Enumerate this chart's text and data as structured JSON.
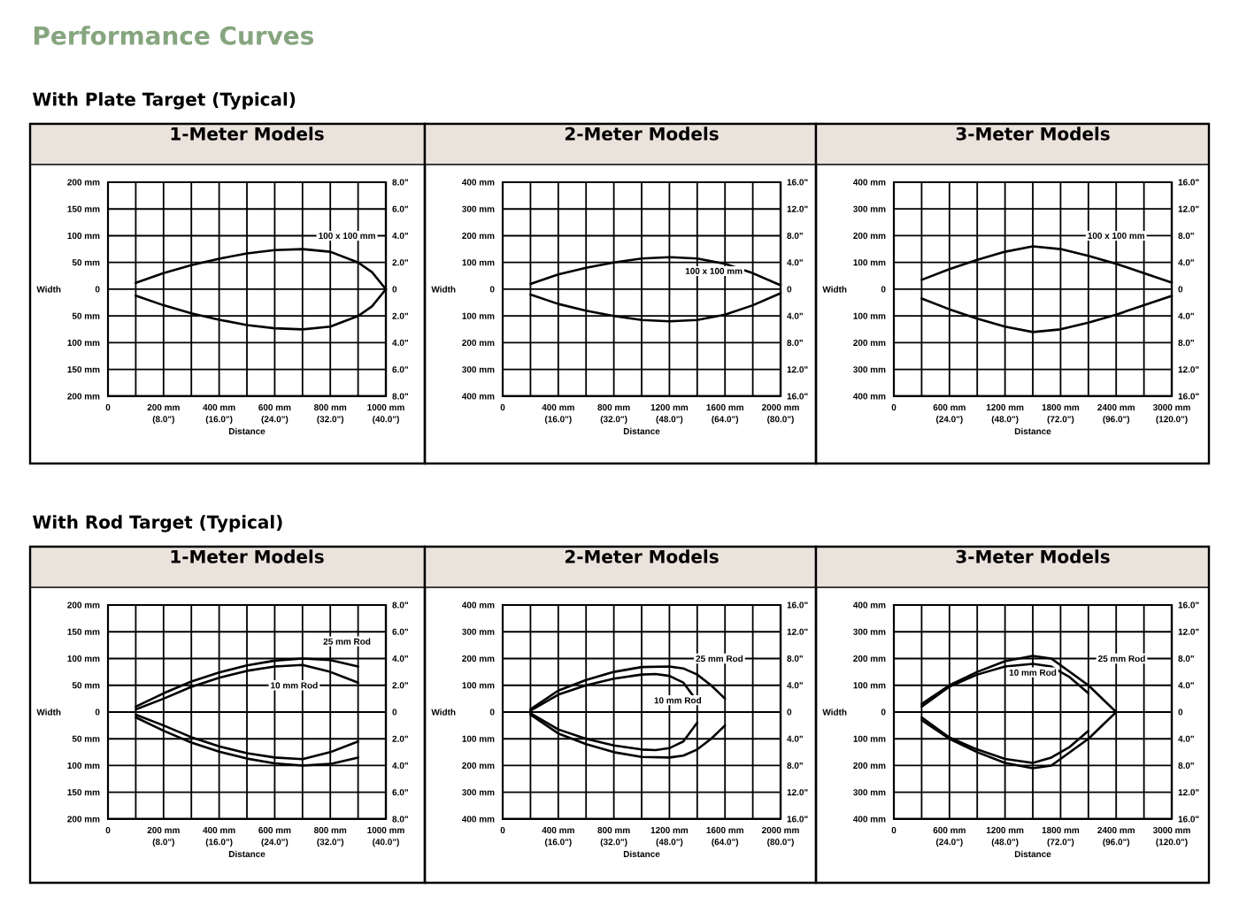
{
  "chart_data": [
    {
      "type": "line",
      "title": "1-Meter Models",
      "xlabel": "Distance",
      "ylabel": "Width",
      "annotations": [
        "Performance Curves",
        "With Plate Target (Typical)"
      ],
      "grid": true,
      "xlim": [
        0,
        1000
      ],
      "ylim": [
        -200,
        200
      ],
      "y2lim": [
        -8,
        8
      ],
      "x2lim": [
        0,
        40
      ],
      "xticks": [
        0,
        {
          "value": 100,
          "label": null
        },
        {
          "value": 200,
          "label": "200 mm"
        },
        {
          "value": 300,
          "label": null
        },
        {
          "value": 400,
          "label": "400 mm"
        },
        {
          "value": 500,
          "label": null
        },
        {
          "value": 600,
          "label": "600 mm"
        },
        {
          "value": 700,
          "label": null
        },
        {
          "value": 800,
          "label": "800 mm"
        },
        {
          "value": 900,
          "label": null
        },
        {
          "value": 1000,
          "label": "1000 mm"
        }
      ],
      "x2ticks": [
        {
          "value": 8,
          "label": "(8.0\")"
        },
        {
          "value": 16,
          "label": "(16.0\")"
        },
        {
          "value": 24,
          "label": "(24.0\")"
        },
        {
          "value": 32,
          "label": "(32.0\")"
        },
        {
          "value": 40,
          "label": "(40.0\")"
        }
      ],
      "yticks": [
        {
          "value": -200,
          "label": "200 mm"
        },
        {
          "value": -150,
          "label": "150 mm"
        },
        {
          "value": -100,
          "label": "100 mm"
        },
        {
          "value": -50,
          "label": "50 mm"
        },
        0,
        {
          "value": 50,
          "label": "50 mm"
        },
        {
          "value": 100,
          "label": "100 mm"
        },
        {
          "value": 150,
          "label": "150 mm"
        },
        {
          "value": 200,
          "label": "200 mm"
        }
      ],
      "y2ticks": [
        {
          "value": -8,
          "label": "8.0\""
        },
        {
          "value": -6,
          "label": "6.0\""
        },
        {
          "value": -4,
          "label": "4.0\""
        },
        {
          "value": -2,
          "label": "2.0\""
        },
        0,
        {
          "value": 2,
          "label": "2.0\""
        },
        {
          "value": 4,
          "label": "4.0\""
        },
        {
          "value": 6,
          "label": "6.0\""
        },
        {
          "value": 8,
          "label": "8.0\""
        }
      ],
      "series": [
        {
          "name": "100 x 100 mm",
          "color": "#000000",
          "x": [
            100,
            200,
            300,
            400,
            500,
            600,
            700,
            800,
            900,
            950,
            1000
          ],
          "values": [
            12,
            30,
            45,
            57,
            67,
            73,
            75,
            70,
            50,
            32,
            0
          ]
        },
        {
          "color": "#000000",
          "x": [
            100,
            200,
            300,
            400,
            500,
            600,
            700,
            800,
            900,
            950,
            1000
          ],
          "values": [
            -12,
            -30,
            -45,
            -57,
            -67,
            -73,
            -75,
            -70,
            -50,
            -32,
            0
          ]
        }
      ]
    },
    {
      "type": "line",
      "title": "2-Meter Models",
      "xlabel": "Distance",
      "ylabel": "Width",
      "grid": true,
      "xlim": [
        0,
        2000
      ],
      "ylim": [
        -400,
        400
      ],
      "y2lim": [
        -16,
        16
      ],
      "x2lim": [
        0,
        80
      ],
      "xticks": [
        0,
        {
          "value": 200,
          "label": null
        },
        {
          "value": 400,
          "label": "400 mm"
        },
        {
          "value": 600,
          "label": null
        },
        {
          "value": 800,
          "label": "800 mm"
        },
        {
          "value": 1000,
          "label": null
        },
        {
          "value": 1200,
          "label": "1200 mm"
        },
        {
          "value": 1400,
          "label": null
        },
        {
          "value": 1600,
          "label": "1600 mm"
        },
        {
          "value": 1800,
          "label": null
        },
        {
          "value": 2000,
          "label": "2000 mm"
        }
      ],
      "x2ticks": [
        {
          "value": 16,
          "label": "(16.0\")"
        },
        {
          "value": 32,
          "label": "(32.0\")"
        },
        {
          "value": 48,
          "label": "(48.0\")"
        },
        {
          "value": 64,
          "label": "(64.0\")"
        },
        {
          "value": 80,
          "label": "(80.0\")"
        }
      ],
      "yticks": [
        {
          "value": -400,
          "label": "400 mm"
        },
        {
          "value": -300,
          "label": "300 mm"
        },
        {
          "value": -200,
          "label": "200 mm"
        },
        {
          "value": -100,
          "label": "100 mm"
        },
        0,
        {
          "value": 100,
          "label": "100 mm"
        },
        {
          "value": 200,
          "label": "200 mm"
        },
        {
          "value": 300,
          "label": "300 mm"
        },
        {
          "value": 400,
          "label": "400 mm"
        }
      ],
      "y2ticks": [
        {
          "value": -16,
          "label": "16.0\""
        },
        {
          "value": -12,
          "label": "12.0\""
        },
        {
          "value": -8,
          "label": "8.0\""
        },
        {
          "value": -4,
          "label": "4.0\""
        },
        0,
        {
          "value": 4,
          "label": "4.0\""
        },
        {
          "value": 8,
          "label": "8.0\""
        },
        {
          "value": 12,
          "label": "12.0\""
        },
        {
          "value": 16,
          "label": "16.0\""
        }
      ],
      "series": [
        {
          "name": "100 x 100 mm",
          "color": "#000000",
          "x": [
            200,
            400,
            600,
            800,
            1000,
            1200,
            1400,
            1600,
            1800,
            2000
          ],
          "values": [
            20,
            55,
            80,
            100,
            115,
            120,
            115,
            95,
            60,
            15
          ]
        },
        {
          "color": "#000000",
          "x": [
            200,
            400,
            600,
            800,
            1000,
            1200,
            1400,
            1600,
            1800,
            2000
          ],
          "values": [
            -20,
            -55,
            -80,
            -100,
            -115,
            -120,
            -115,
            -95,
            -60,
            -15
          ]
        }
      ]
    },
    {
      "type": "line",
      "title": "3-Meter Models",
      "xlabel": "Distance",
      "ylabel": "Width",
      "grid": true,
      "xlim": [
        0,
        3000
      ],
      "ylim": [
        -400,
        400
      ],
      "y2lim": [
        -16,
        16
      ],
      "x2lim": [
        0,
        120
      ],
      "xticks": [
        0,
        {
          "value": 300,
          "label": null
        },
        {
          "value": 600,
          "label": "600 mm"
        },
        {
          "value": 900,
          "label": null
        },
        {
          "value": 1200,
          "label": "1200 mm"
        },
        {
          "value": 1500,
          "label": null
        },
        {
          "value": 1800,
          "label": "1800 mm"
        },
        {
          "value": 2100,
          "label": null
        },
        {
          "value": 2400,
          "label": "2400 mm"
        },
        {
          "value": 2700,
          "label": null
        },
        {
          "value": 3000,
          "label": "3000 mm"
        }
      ],
      "x2ticks": [
        {
          "value": 24,
          "label": "(24.0\")"
        },
        {
          "value": 48,
          "label": "(48.0\")"
        },
        {
          "value": 72,
          "label": "(72.0\")"
        },
        {
          "value": 96,
          "label": "(96.0\")"
        },
        {
          "value": 120,
          "label": "(120.0\")"
        }
      ],
      "yticks": [
        {
          "value": -400,
          "label": "400 mm"
        },
        {
          "value": -300,
          "label": "300 mm"
        },
        {
          "value": -200,
          "label": "200 mm"
        },
        {
          "value": -100,
          "label": "100 mm"
        },
        0,
        {
          "value": 100,
          "label": "100 mm"
        },
        {
          "value": 200,
          "label": "200 mm"
        },
        {
          "value": 300,
          "label": "300 mm"
        },
        {
          "value": 400,
          "label": "400 mm"
        }
      ],
      "y2ticks": [
        {
          "value": -16,
          "label": "16.0\""
        },
        {
          "value": -12,
          "label": "12.0\""
        },
        {
          "value": -8,
          "label": "8.0\""
        },
        {
          "value": -4,
          "label": "4.0\""
        },
        0,
        {
          "value": 4,
          "label": "4.0\""
        },
        {
          "value": 8,
          "label": "8.0\""
        },
        {
          "value": 12,
          "label": "12.0\""
        },
        {
          "value": 16,
          "label": "16.0\""
        }
      ],
      "series": [
        {
          "name": "100 x 100 mm",
          "color": "#000000",
          "x": [
            300,
            600,
            900,
            1200,
            1500,
            1800,
            2100,
            2400,
            2700,
            3000
          ],
          "values": [
            35,
            75,
            110,
            140,
            160,
            150,
            125,
            95,
            60,
            25
          ]
        },
        {
          "color": "#000000",
          "x": [
            300,
            600,
            900,
            1200,
            1500,
            1800,
            2100,
            2400,
            2700,
            3000
          ],
          "values": [
            -35,
            -75,
            -110,
            -140,
            -160,
            -150,
            -125,
            -95,
            -60,
            -25
          ]
        }
      ]
    },
    {
      "type": "line",
      "title": "1-Meter Models",
      "xlabel": "Distance",
      "ylabel": "Width",
      "annotations": [
        "With Rod Target (Typical)"
      ],
      "grid": true,
      "xlim": [
        0,
        1000
      ],
      "ylim": [
        -200,
        200
      ],
      "y2lim": [
        -8,
        8
      ],
      "x2lim": [
        0,
        40
      ],
      "xticks": [
        0,
        {
          "value": 100,
          "label": null
        },
        {
          "value": 200,
          "label": "200 mm"
        },
        {
          "value": 300,
          "label": null
        },
        {
          "value": 400,
          "label": "400 mm"
        },
        {
          "value": 500,
          "label": null
        },
        {
          "value": 600,
          "label": "600 mm"
        },
        {
          "value": 700,
          "label": null
        },
        {
          "value": 800,
          "label": "800 mm"
        },
        {
          "value": 900,
          "label": null
        },
        {
          "value": 1000,
          "label": "1000 mm"
        }
      ],
      "x2ticks": [
        {
          "value": 8,
          "label": "(8.0\")"
        },
        {
          "value": 16,
          "label": "(16.0\")"
        },
        {
          "value": 24,
          "label": "(24.0\")"
        },
        {
          "value": 32,
          "label": "(32.0\")"
        },
        {
          "value": 40,
          "label": "(40.0\")"
        }
      ],
      "yticks": [
        {
          "value": -200,
          "label": "200 mm"
        },
        {
          "value": -150,
          "label": "150 mm"
        },
        {
          "value": -100,
          "label": "100 mm"
        },
        {
          "value": -50,
          "label": "50 mm"
        },
        0,
        {
          "value": 50,
          "label": "50 mm"
        },
        {
          "value": 100,
          "label": "100 mm"
        },
        {
          "value": 150,
          "label": "150 mm"
        },
        {
          "value": 200,
          "label": "200 mm"
        }
      ],
      "y2ticks": [
        {
          "value": -8,
          "label": "8.0\""
        },
        {
          "value": -6,
          "label": "6.0\""
        },
        {
          "value": -4,
          "label": "4.0\""
        },
        {
          "value": -2,
          "label": "2.0\""
        },
        0,
        {
          "value": 2,
          "label": "2.0\""
        },
        {
          "value": 4,
          "label": "4.0\""
        },
        {
          "value": 6,
          "label": "6.0\""
        },
        {
          "value": 8,
          "label": "8.0\""
        }
      ],
      "series": [
        {
          "name": "25 mm Rod",
          "color": "#000000",
          "x": [
            100,
            200,
            300,
            400,
            500,
            600,
            700,
            800,
            900
          ],
          "values": [
            10,
            35,
            57,
            74,
            87,
            96,
            100,
            97,
            85
          ]
        },
        {
          "color": "#000000",
          "x": [
            100,
            200,
            300,
            400,
            500,
            600,
            700,
            800,
            900
          ],
          "values": [
            -10,
            -35,
            -57,
            -74,
            -87,
            -96,
            -100,
            -97,
            -85
          ]
        },
        {
          "name": "10 mm Rod",
          "color": "#000000",
          "x": [
            100,
            200,
            300,
            400,
            500,
            600,
            700,
            800,
            900
          ],
          "values": [
            5,
            25,
            47,
            64,
            77,
            85,
            88,
            75,
            55
          ]
        },
        {
          "color": "#000000",
          "x": [
            100,
            200,
            300,
            400,
            500,
            600,
            700,
            800,
            900
          ],
          "values": [
            -5,
            -25,
            -47,
            -64,
            -77,
            -85,
            -88,
            -75,
            -55
          ]
        }
      ]
    },
    {
      "type": "line",
      "title": "2-Meter Models",
      "xlabel": "Distance",
      "ylabel": "Width",
      "grid": true,
      "xlim": [
        0,
        2000
      ],
      "ylim": [
        -400,
        400
      ],
      "y2lim": [
        -16,
        16
      ],
      "x2lim": [
        0,
        80
      ],
      "xticks": [
        0,
        {
          "value": 200,
          "label": null
        },
        {
          "value": 400,
          "label": "400 mm"
        },
        {
          "value": 600,
          "label": null
        },
        {
          "value": 800,
          "label": "800 mm"
        },
        {
          "value": 1000,
          "label": null
        },
        {
          "value": 1200,
          "label": "1200 mm"
        },
        {
          "value": 1400,
          "label": null
        },
        {
          "value": 1600,
          "label": "1600 mm"
        },
        {
          "value": 1800,
          "label": null
        },
        {
          "value": 2000,
          "label": "2000 mm"
        }
      ],
      "x2ticks": [
        {
          "value": 16,
          "label": "(16.0\")"
        },
        {
          "value": 32,
          "label": "(32.0\")"
        },
        {
          "value": 48,
          "label": "(48.0\")"
        },
        {
          "value": 64,
          "label": "(64.0\")"
        },
        {
          "value": 80,
          "label": "(80.0\")"
        }
      ],
      "yticks": [
        {
          "value": -400,
          "label": "400 mm"
        },
        {
          "value": -300,
          "label": "300 mm"
        },
        {
          "value": -200,
          "label": "200 mm"
        },
        {
          "value": -100,
          "label": "100 mm"
        },
        0,
        {
          "value": 100,
          "label": "100 mm"
        },
        {
          "value": 200,
          "label": "200 mm"
        },
        {
          "value": 300,
          "label": "300 mm"
        },
        {
          "value": 400,
          "label": "400 mm"
        }
      ],
      "y2ticks": [
        {
          "value": -16,
          "label": "16.0\""
        },
        {
          "value": -12,
          "label": "12.0\""
        },
        {
          "value": -8,
          "label": "8.0\""
        },
        {
          "value": -4,
          "label": "4.0\""
        },
        0,
        {
          "value": 4,
          "label": "4.0\""
        },
        {
          "value": 8,
          "label": "8.0\""
        },
        {
          "value": 12,
          "label": "12.0\""
        },
        {
          "value": 16,
          "label": "16.0\""
        }
      ],
      "series": [
        {
          "name": "25 mm Rod",
          "color": "#000000",
          "x": [
            200,
            400,
            600,
            800,
            1000,
            1200,
            1300,
            1400,
            1500,
            1600
          ],
          "values": [
            10,
            80,
            120,
            150,
            168,
            170,
            163,
            140,
            100,
            50
          ]
        },
        {
          "color": "#000000",
          "x": [
            200,
            400,
            600,
            800,
            1000,
            1200,
            1300,
            1400,
            1500,
            1600
          ],
          "values": [
            -10,
            -80,
            -120,
            -150,
            -168,
            -170,
            -163,
            -140,
            -100,
            -50
          ]
        },
        {
          "name": "10 mm Rod",
          "color": "#000000",
          "x": [
            200,
            400,
            600,
            800,
            1000,
            1100,
            1200,
            1300,
            1400
          ],
          "values": [
            5,
            65,
            100,
            125,
            140,
            142,
            135,
            110,
            40
          ]
        },
        {
          "color": "#000000",
          "x": [
            200,
            400,
            600,
            800,
            1000,
            1100,
            1200,
            1300,
            1400
          ],
          "values": [
            -5,
            -65,
            -100,
            -125,
            -140,
            -142,
            -135,
            -110,
            -40
          ]
        }
      ]
    },
    {
      "type": "line",
      "title": "3-Meter Models",
      "xlabel": "Distance",
      "ylabel": "Width",
      "grid": true,
      "xlim": [
        0,
        3000
      ],
      "ylim": [
        -400,
        400
      ],
      "y2lim": [
        -16,
        16
      ],
      "x2lim": [
        0,
        120
      ],
      "xticks": [
        0,
        {
          "value": 300,
          "label": null
        },
        {
          "value": 600,
          "label": "600 mm"
        },
        {
          "value": 900,
          "label": null
        },
        {
          "value": 1200,
          "label": "1200 mm"
        },
        {
          "value": 1500,
          "label": null
        },
        {
          "value": 1800,
          "label": "1800 mm"
        },
        {
          "value": 2100,
          "label": null
        },
        {
          "value": 2400,
          "label": "2400 mm"
        },
        {
          "value": 2700,
          "label": null
        },
        {
          "value": 3000,
          "label": "3000 mm"
        }
      ],
      "x2ticks": [
        {
          "value": 24,
          "label": "(24.0\")"
        },
        {
          "value": 48,
          "label": "(48.0\")"
        },
        {
          "value": 72,
          "label": "(72.0\")"
        },
        {
          "value": 96,
          "label": "(96.0\")"
        },
        {
          "value": 120,
          "label": "(120.0\")"
        }
      ],
      "yticks": [
        {
          "value": -400,
          "label": "400 mm"
        },
        {
          "value": -300,
          "label": "300 mm"
        },
        {
          "value": -200,
          "label": "200 mm"
        },
        {
          "value": -100,
          "label": "100 mm"
        },
        0,
        {
          "value": 100,
          "label": "100 mm"
        },
        {
          "value": 200,
          "label": "200 mm"
        },
        {
          "value": 300,
          "label": "300 mm"
        },
        {
          "value": 400,
          "label": "400 mm"
        }
      ],
      "y2ticks": [
        {
          "value": -16,
          "label": "16.0\""
        },
        {
          "value": -12,
          "label": "12.0\""
        },
        {
          "value": -8,
          "label": "8.0\""
        },
        {
          "value": -4,
          "label": "4.0\""
        },
        0,
        {
          "value": 4,
          "label": "4.0\""
        },
        {
          "value": 8,
          "label": "8.0\""
        },
        {
          "value": 12,
          "label": "12.0\""
        },
        {
          "value": 16,
          "label": "16.0\""
        }
      ],
      "series": [
        {
          "name": "25 mm Rod",
          "color": "#000000",
          "x": [
            300,
            600,
            900,
            1200,
            1500,
            1700,
            1900,
            2100,
            2400
          ],
          "values": [
            30,
            100,
            150,
            190,
            210,
            200,
            150,
            100,
            0
          ]
        },
        {
          "color": "#000000",
          "x": [
            300,
            600,
            900,
            1200,
            1500,
            1700,
            1900,
            2100,
            2400
          ],
          "values": [
            -30,
            -100,
            -150,
            -190,
            -210,
            -200,
            -150,
            -100,
            0
          ]
        },
        {
          "name": "10 mm Rod",
          "color": "#000000",
          "x": [
            300,
            600,
            900,
            1200,
            1500,
            1700,
            1900,
            2100
          ],
          "values": [
            20,
            95,
            140,
            170,
            180,
            170,
            130,
            70
          ]
        },
        {
          "color": "#000000",
          "x": [
            300,
            600,
            900,
            1200,
            1500,
            1700,
            1900,
            2100
          ],
          "values": [
            -20,
            -95,
            -140,
            -175,
            -190,
            -170,
            -130,
            -70
          ]
        }
      ]
    }
  ]
}
